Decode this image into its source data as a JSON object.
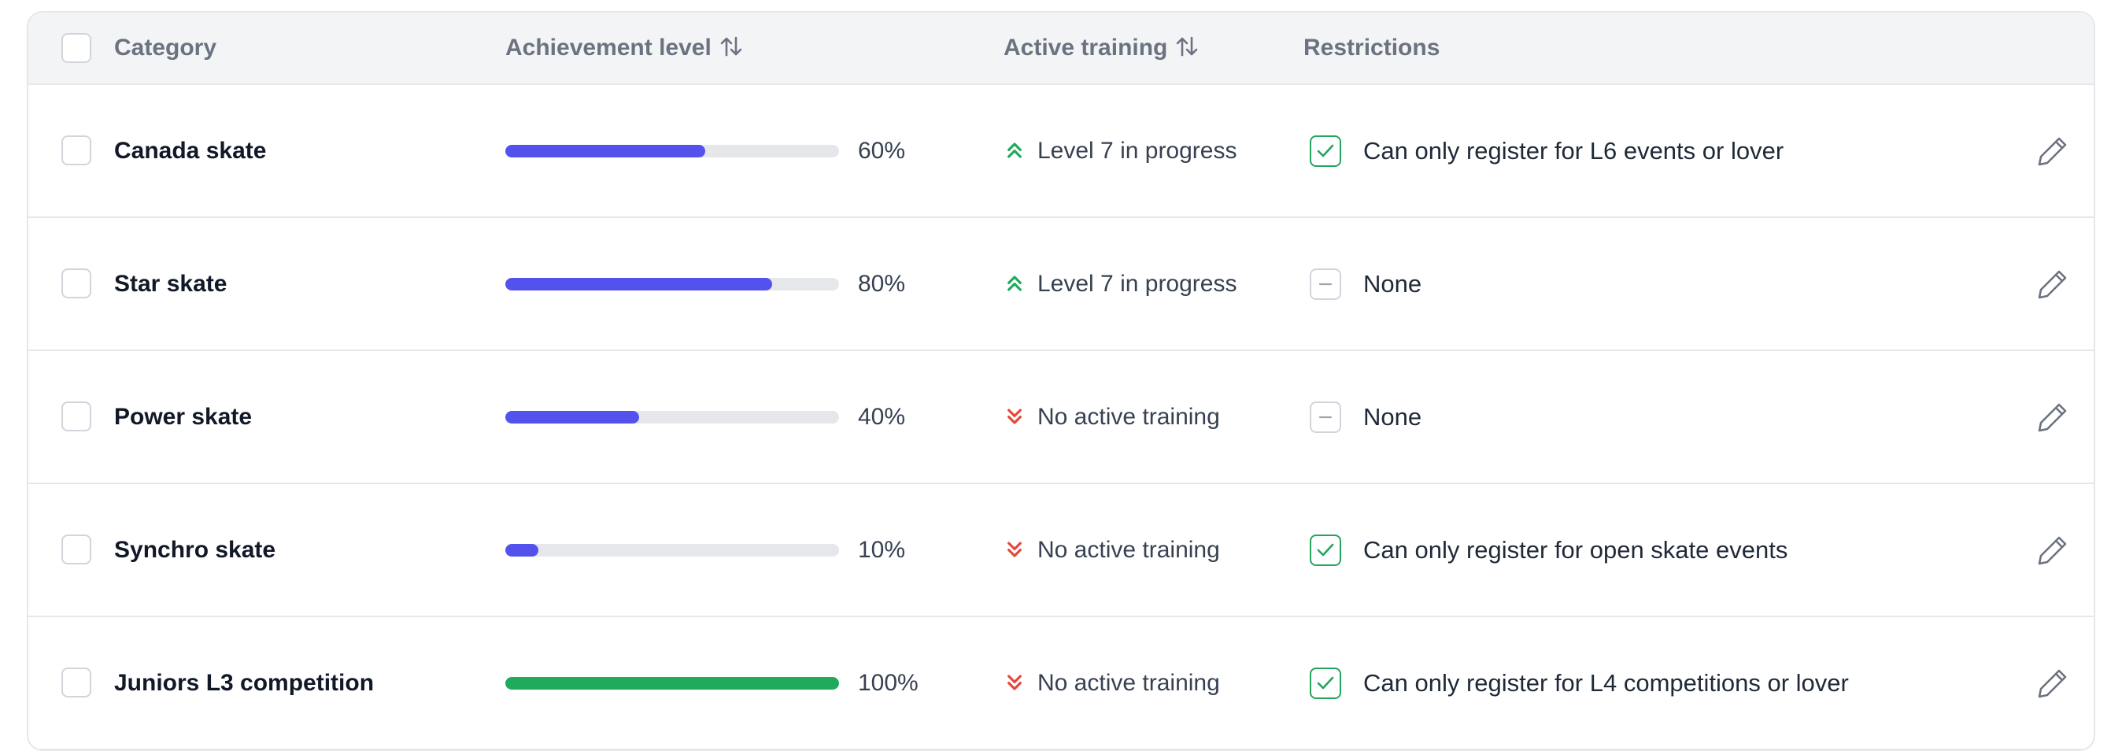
{
  "header": {
    "category": "Category",
    "achievement_level": "Achievement level",
    "active_training": "Active training",
    "restrictions": "Restrictions"
  },
  "colors": {
    "progress_default": "#5352ed",
    "progress_complete": "#1faa5c",
    "trend_up": "#1faa5c",
    "trend_down": "#e5483b",
    "restriction_check": "#22a55c"
  },
  "rows": [
    {
      "category": "Canada skate",
      "progress_percent": 60,
      "progress_label": "60%",
      "training": "Level 7 in progress",
      "training_trend": "up",
      "restriction_icon": "checked-icon",
      "restriction": "Can only register for L6 events or lover"
    },
    {
      "category": "Star skate",
      "progress_percent": 80,
      "progress_label": "80%",
      "training": "Level 7 in progress",
      "training_trend": "up",
      "restriction_icon": "minus-icon",
      "restriction": "None"
    },
    {
      "category": "Power skate",
      "progress_percent": 40,
      "progress_label": "40%",
      "training": "No active training",
      "training_trend": "down",
      "restriction_icon": "minus-icon",
      "restriction": "None"
    },
    {
      "category": "Synchro skate",
      "progress_percent": 10,
      "progress_label": "10%",
      "training": "No active training",
      "training_trend": "down",
      "restriction_icon": "checked-icon",
      "restriction": "Can only register for open skate events"
    },
    {
      "category": "Juniors L3 competition",
      "progress_percent": 100,
      "progress_label": "100%",
      "training": "No active training",
      "training_trend": "down",
      "restriction_icon": "checked-icon",
      "restriction": "Can only register for L4 competitions or lover"
    }
  ]
}
